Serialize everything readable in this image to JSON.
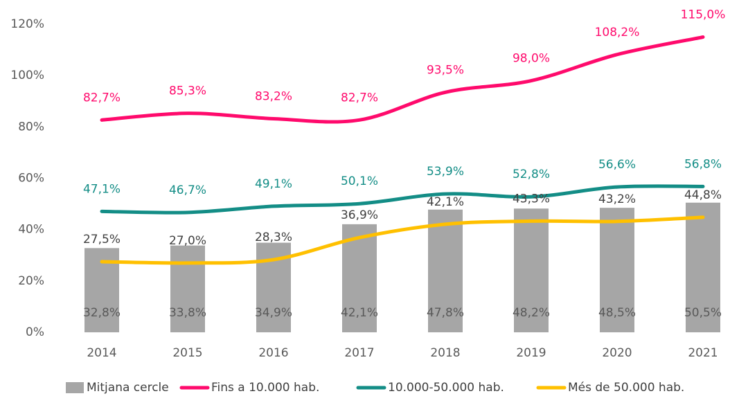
{
  "chart_data": {
    "type": "combo",
    "categories": [
      "2014",
      "2015",
      "2016",
      "2017",
      "2018",
      "2019",
      "2020",
      "2021"
    ],
    "series": [
      {
        "name": "Mitjana cercle",
        "type": "bar",
        "color": "#a6a6a6",
        "label_color": "#595959",
        "values": [
          32.8,
          33.8,
          34.9,
          42.1,
          47.8,
          48.2,
          48.5,
          50.5
        ],
        "value_labels": [
          "32,8%",
          "33,8%",
          "34,9%",
          "42,1%",
          "47,8%",
          "48,2%",
          "48,5%",
          "50,5%"
        ]
      },
      {
        "name": "Fins a 10.000 hab.",
        "type": "line",
        "color": "#ff0a6c",
        "label_color": "#ff0a6c",
        "values": [
          82.7,
          85.3,
          83.2,
          82.7,
          93.5,
          98.0,
          108.2,
          115.0
        ],
        "value_labels": [
          "82,7%",
          "85,3%",
          "83,2%",
          "82,7%",
          "93,5%",
          "98,0%",
          "108,2%",
          "115,0%"
        ]
      },
      {
        "name": "10.000-50.000 hab.",
        "type": "line",
        "color": "#138d86",
        "label_color": "#138d86",
        "values": [
          47.1,
          46.7,
          49.1,
          50.1,
          53.9,
          52.8,
          56.6,
          56.8
        ],
        "value_labels": [
          "47,1%",
          "46,7%",
          "49,1%",
          "50,1%",
          "53,9%",
          "52,8%",
          "56,6%",
          "56,8%"
        ]
      },
      {
        "name": "Més de 50.000 hab.",
        "type": "line",
        "color": "#ffc000",
        "label_color": "#404040",
        "values": [
          27.5,
          27.0,
          28.3,
          36.9,
          42.1,
          43.3,
          43.2,
          44.8
        ],
        "value_labels": [
          "27,5%",
          "27,0%",
          "28,3%",
          "36,9%",
          "42,1%",
          "43,3%",
          "43,2%",
          "44,8%"
        ]
      }
    ],
    "ylim": [
      0,
      120
    ],
    "yticks": [
      {
        "value": 0,
        "label": "0%"
      },
      {
        "value": 20,
        "label": "20%"
      },
      {
        "value": 40,
        "label": "40%"
      },
      {
        "value": 60,
        "label": "60%"
      },
      {
        "value": 80,
        "label": "80%"
      },
      {
        "value": 100,
        "label": "100%"
      },
      {
        "value": 120,
        "label": "120%"
      }
    ],
    "legend": "bottom"
  }
}
